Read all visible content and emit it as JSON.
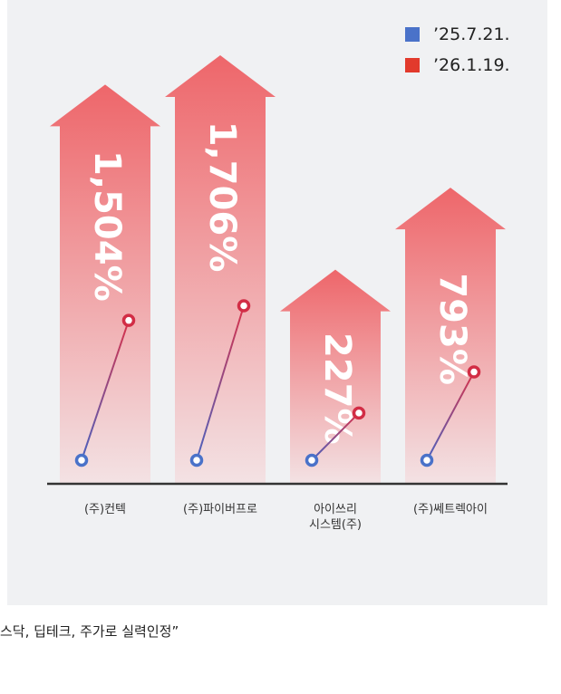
{
  "chart_data": {
    "type": "arrow",
    "categories": [
      "(주)컨텍",
      "(주)파이버프로",
      "아이쓰리\n시스템(주)",
      "(주)쎄트렉아이"
    ],
    "values": [
      1504,
      1706,
      227,
      793
    ],
    "value_labels": [
      "1,504%",
      "1,706%",
      "227%",
      "793%"
    ],
    "legend": [
      {
        "label": "’25.7.21.",
        "color": "#4a72c9"
      },
      {
        "label": "’26.1.19.",
        "color": "#e23a2c"
      }
    ]
  },
  "footer": "스닥, 딥테크, 주가로 실력인정”"
}
